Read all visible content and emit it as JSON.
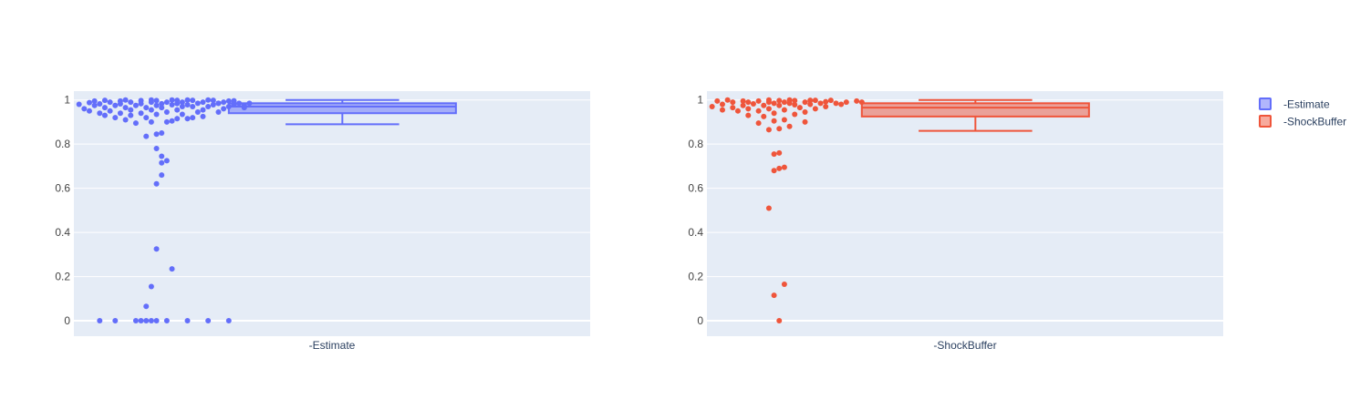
{
  "chart_data": {
    "type": "box",
    "y_tick_labels": [
      "0",
      "0.2",
      "0.4",
      "0.6",
      "0.8",
      "1"
    ],
    "ylim": [
      -0.07,
      1.04
    ],
    "grid": true,
    "legend_placement": "top-right",
    "series": [
      {
        "name": "-Estimate",
        "category": "-Estimate",
        "color": "#636efa",
        "box": {
          "lower_fence": 0.89,
          "q1": 0.94,
          "median": 0.97,
          "q3": 0.985,
          "upper_fence": 1.0
        },
        "points": [
          [
            -0.45,
            0
          ],
          [
            -0.42,
            0
          ],
          [
            -0.38,
            0
          ],
          [
            -0.37,
            0
          ],
          [
            -0.36,
            0
          ],
          [
            -0.35,
            0
          ],
          [
            -0.34,
            0
          ],
          [
            -0.32,
            0
          ],
          [
            -0.28,
            0
          ],
          [
            -0.24,
            0
          ],
          [
            -0.2,
            0
          ],
          [
            -0.36,
            0.065
          ],
          [
            -0.35,
            0.155
          ],
          [
            -0.31,
            0.235
          ],
          [
            -0.34,
            0.325
          ],
          [
            -0.34,
            0.62
          ],
          [
            -0.33,
            0.66
          ],
          [
            -0.33,
            0.715
          ],
          [
            -0.32,
            0.725
          ],
          [
            -0.33,
            0.745
          ],
          [
            -0.34,
            0.78
          ],
          [
            -0.36,
            0.835
          ],
          [
            -0.34,
            0.845
          ],
          [
            -0.33,
            0.85
          ],
          [
            -0.38,
            0.895
          ],
          [
            -0.35,
            0.9
          ],
          [
            -0.32,
            0.9
          ],
          [
            -0.31,
            0.905
          ],
          [
            -0.4,
            0.91
          ],
          [
            -0.3,
            0.915
          ],
          [
            -0.28,
            0.915
          ],
          [
            -0.42,
            0.92
          ],
          [
            -0.36,
            0.92
          ],
          [
            -0.27,
            0.92
          ],
          [
            -0.25,
            0.925
          ],
          [
            -0.44,
            0.93
          ],
          [
            -0.39,
            0.93
          ],
          [
            -0.34,
            0.935
          ],
          [
            -0.29,
            0.935
          ],
          [
            -0.45,
            0.94
          ],
          [
            -0.41,
            0.94
          ],
          [
            -0.37,
            0.94
          ],
          [
            -0.32,
            0.945
          ],
          [
            -0.26,
            0.945
          ],
          [
            -0.22,
            0.945
          ],
          [
            -0.47,
            0.95
          ],
          [
            -0.43,
            0.95
          ],
          [
            -0.39,
            0.955
          ],
          [
            -0.35,
            0.955
          ],
          [
            -0.3,
            0.955
          ],
          [
            -0.25,
            0.955
          ],
          [
            -0.21,
            0.96
          ],
          [
            -0.48,
            0.96
          ],
          [
            -0.44,
            0.965
          ],
          [
            -0.4,
            0.965
          ],
          [
            -0.36,
            0.965
          ],
          [
            -0.33,
            0.965
          ],
          [
            -0.29,
            0.97
          ],
          [
            -0.27,
            0.97
          ],
          [
            -0.24,
            0.97
          ],
          [
            -0.2,
            0.97
          ],
          [
            -0.17,
            0.965
          ],
          [
            -0.46,
            0.975
          ],
          [
            -0.42,
            0.975
          ],
          [
            -0.38,
            0.975
          ],
          [
            -0.34,
            0.975
          ],
          [
            -0.31,
            0.978
          ],
          [
            -0.28,
            0.978
          ],
          [
            -0.23,
            0.978
          ],
          [
            -0.19,
            0.978
          ],
          [
            -0.49,
            0.98
          ],
          [
            -0.45,
            0.982
          ],
          [
            -0.41,
            0.982
          ],
          [
            -0.37,
            0.983
          ],
          [
            -0.33,
            0.983
          ],
          [
            -0.3,
            0.984
          ],
          [
            -0.26,
            0.985
          ],
          [
            -0.22,
            0.985
          ],
          [
            -0.18,
            0.985
          ],
          [
            -0.47,
            0.988
          ],
          [
            -0.43,
            0.99
          ],
          [
            -0.39,
            0.99
          ],
          [
            -0.35,
            0.99
          ],
          [
            -0.32,
            0.99
          ],
          [
            -0.29,
            0.99
          ],
          [
            -0.25,
            0.99
          ],
          [
            -0.21,
            0.99
          ],
          [
            -0.46,
            0.995
          ],
          [
            -0.41,
            0.995
          ],
          [
            -0.37,
            0.997
          ],
          [
            -0.34,
            0.997
          ],
          [
            -0.3,
            0.998
          ],
          [
            -0.27,
            0.998
          ],
          [
            -0.23,
            0.998
          ],
          [
            -0.19,
            0.996
          ],
          [
            -0.16,
            0.985
          ],
          [
            -0.17,
            0.975
          ],
          [
            -0.44,
            0.998
          ],
          [
            -0.4,
            1.0
          ],
          [
            -0.35,
            1.0
          ],
          [
            -0.31,
            1.0
          ],
          [
            -0.28,
            1.0
          ],
          [
            -0.24,
            1.0
          ],
          [
            -0.2,
            0.995
          ],
          [
            -0.22,
            0.985
          ]
        ]
      },
      {
        "name": "-ShockBuffer",
        "category": "-ShockBuffer",
        "color": "#ef553b",
        "box": {
          "lower_fence": 0.86,
          "q1": 0.925,
          "median": 0.965,
          "q3": 0.985,
          "upper_fence": 1.0
        },
        "points": [
          [
            -0.36,
            0.0
          ],
          [
            -0.37,
            0.115
          ],
          [
            -0.35,
            0.165
          ],
          [
            -0.38,
            0.51
          ],
          [
            -0.37,
            0.68
          ],
          [
            -0.36,
            0.69
          ],
          [
            -0.35,
            0.695
          ],
          [
            -0.37,
            0.755
          ],
          [
            -0.36,
            0.76
          ],
          [
            -0.38,
            0.865
          ],
          [
            -0.36,
            0.87
          ],
          [
            -0.34,
            0.88
          ],
          [
            -0.4,
            0.895
          ],
          [
            -0.31,
            0.9
          ],
          [
            -0.37,
            0.905
          ],
          [
            -0.35,
            0.91
          ],
          [
            -0.39,
            0.925
          ],
          [
            -0.42,
            0.93
          ],
          [
            -0.33,
            0.935
          ],
          [
            -0.37,
            0.94
          ],
          [
            -0.31,
            0.945
          ],
          [
            -0.44,
            0.95
          ],
          [
            -0.4,
            0.95
          ],
          [
            -0.35,
            0.955
          ],
          [
            -0.47,
            0.955
          ],
          [
            -0.42,
            0.96
          ],
          [
            -0.38,
            0.96
          ],
          [
            -0.29,
            0.96
          ],
          [
            -0.45,
            0.965
          ],
          [
            -0.32,
            0.965
          ],
          [
            -0.27,
            0.97
          ],
          [
            -0.49,
            0.97
          ],
          [
            -0.43,
            0.975
          ],
          [
            -0.39,
            0.975
          ],
          [
            -0.36,
            0.975
          ],
          [
            -0.33,
            0.978
          ],
          [
            -0.3,
            0.98
          ],
          [
            -0.47,
            0.98
          ],
          [
            -0.41,
            0.982
          ],
          [
            -0.37,
            0.985
          ],
          [
            -0.34,
            0.985
          ],
          [
            -0.28,
            0.985
          ],
          [
            -0.25,
            0.985
          ],
          [
            -0.45,
            0.99
          ],
          [
            -0.42,
            0.99
          ],
          [
            -0.38,
            0.99
          ],
          [
            -0.35,
            0.99
          ],
          [
            -0.31,
            0.99
          ],
          [
            -0.27,
            0.992
          ],
          [
            -0.23,
            0.99
          ],
          [
            -0.48,
            0.995
          ],
          [
            -0.43,
            0.995
          ],
          [
            -0.4,
            0.995
          ],
          [
            -0.36,
            0.997
          ],
          [
            -0.33,
            0.997
          ],
          [
            -0.3,
            0.998
          ],
          [
            -0.26,
            0.998
          ],
          [
            -0.21,
            0.995
          ],
          [
            -0.46,
            1.0
          ],
          [
            -0.38,
            1.0
          ],
          [
            -0.34,
            1.0
          ],
          [
            -0.29,
            0.998
          ],
          [
            -0.24,
            0.98
          ],
          [
            -0.2,
            0.99
          ]
        ]
      }
    ]
  },
  "legend": {
    "items": [
      {
        "label": "-Estimate",
        "color": "#636efa"
      },
      {
        "label": "-ShockBuffer",
        "color": "#ef553b"
      }
    ]
  }
}
